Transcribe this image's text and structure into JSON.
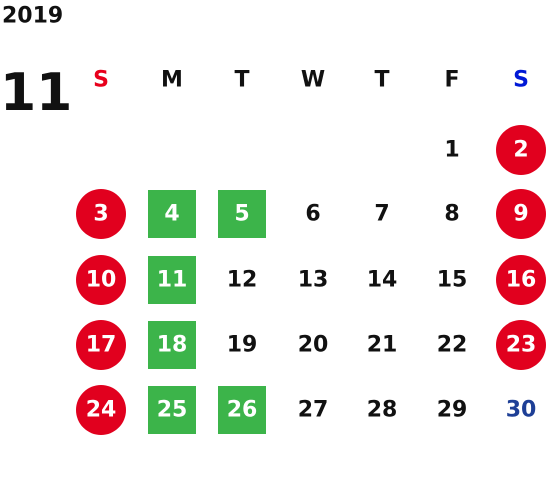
{
  "calendar": {
    "year": 2019,
    "month": 11,
    "weekdays": [
      {
        "text": "S",
        "color": "#e8001c"
      },
      {
        "text": "M",
        "color": "#111111"
      },
      {
        "text": "T",
        "color": "#111111"
      },
      {
        "text": "W",
        "color": "#111111"
      },
      {
        "text": "T",
        "color": "#111111"
      },
      {
        "text": "F",
        "color": "#111111"
      },
      {
        "text": "S",
        "color": "#0019d6"
      }
    ],
    "styles": {
      "holiday": {
        "shape": "circle",
        "fill": "#e1001e",
        "color": "#ffffff"
      },
      "event": {
        "shape": "square",
        "fill": "#3cb44a",
        "color": "#ffffff"
      },
      "saturday": {
        "shape": "none",
        "fill": "none",
        "color": "#1e3f96"
      },
      "plain": {
        "shape": "none",
        "fill": "none",
        "color": "#111111"
      }
    },
    "weeks": [
      [
        null,
        null,
        null,
        null,
        null,
        {
          "day": 1,
          "style": "plain"
        },
        {
          "day": 2,
          "style": "holiday"
        }
      ],
      [
        {
          "day": 3,
          "style": "holiday"
        },
        {
          "day": 4,
          "style": "event"
        },
        {
          "day": 5,
          "style": "event"
        },
        {
          "day": 6,
          "style": "plain"
        },
        {
          "day": 7,
          "style": "plain"
        },
        {
          "day": 8,
          "style": "plain"
        },
        {
          "day": 9,
          "style": "holiday"
        }
      ],
      [
        {
          "day": 10,
          "style": "holiday"
        },
        {
          "day": 11,
          "style": "event"
        },
        {
          "day": 12,
          "style": "plain"
        },
        {
          "day": 13,
          "style": "plain"
        },
        {
          "day": 14,
          "style": "plain"
        },
        {
          "day": 15,
          "style": "plain"
        },
        {
          "day": 16,
          "style": "holiday"
        }
      ],
      [
        {
          "day": 17,
          "style": "holiday"
        },
        {
          "day": 18,
          "style": "event"
        },
        {
          "day": 19,
          "style": "plain"
        },
        {
          "day": 20,
          "style": "plain"
        },
        {
          "day": 21,
          "style": "plain"
        },
        {
          "day": 22,
          "style": "plain"
        },
        {
          "day": 23,
          "style": "holiday"
        }
      ],
      [
        {
          "day": 24,
          "style": "holiday"
        },
        {
          "day": 25,
          "style": "event"
        },
        {
          "day": 26,
          "style": "event"
        },
        {
          "day": 27,
          "style": "plain"
        },
        {
          "day": 28,
          "style": "plain"
        },
        {
          "day": 29,
          "style": "plain"
        },
        {
          "day": 30,
          "style": "saturday"
        }
      ]
    ]
  }
}
